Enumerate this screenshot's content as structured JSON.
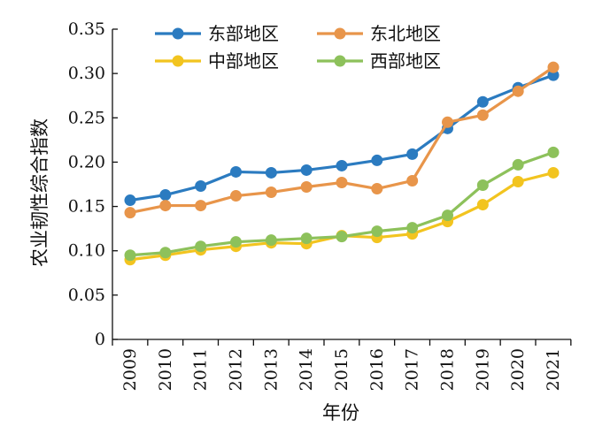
{
  "chart_data": {
    "type": "line",
    "title": "",
    "xlabel": "年份",
    "ylabel": "农业韧性综合指数",
    "ylim": [
      0,
      0.35
    ],
    "yticks": [
      "0",
      "0.05",
      "0.10",
      "0.15",
      "0.20",
      "0.25",
      "0.30",
      "0.35"
    ],
    "yticks_values": [
      0,
      0.05,
      0.1,
      0.15,
      0.2,
      0.25,
      0.3,
      0.35
    ],
    "categories": [
      "2009",
      "2010",
      "2011",
      "2012",
      "2013",
      "2014",
      "2015",
      "2016",
      "2017",
      "2018",
      "2019",
      "2020",
      "2021"
    ],
    "grid": false,
    "legend": "top-left, two columns",
    "series": [
      {
        "name": "东部地区",
        "color": "#2b7bc0",
        "values": [
          0.157,
          0.163,
          0.173,
          0.189,
          0.188,
          0.191,
          0.196,
          0.202,
          0.209,
          0.238,
          0.268,
          0.284,
          0.298
        ]
      },
      {
        "name": "东北地区",
        "color": "#e8954a",
        "values": [
          0.143,
          0.151,
          0.151,
          0.162,
          0.166,
          0.172,
          0.177,
          0.17,
          0.179,
          0.245,
          0.253,
          0.28,
          0.307
        ]
      },
      {
        "name": "中部地区",
        "color": "#f2c41f",
        "values": [
          0.09,
          0.095,
          0.101,
          0.105,
          0.109,
          0.108,
          0.117,
          0.115,
          0.119,
          0.133,
          0.152,
          0.178,
          0.188
        ]
      },
      {
        "name": "西部地区",
        "color": "#8dc15b",
        "values": [
          0.095,
          0.098,
          0.105,
          0.11,
          0.112,
          0.114,
          0.116,
          0.122,
          0.126,
          0.14,
          0.174,
          0.197,
          0.211
        ]
      }
    ]
  }
}
